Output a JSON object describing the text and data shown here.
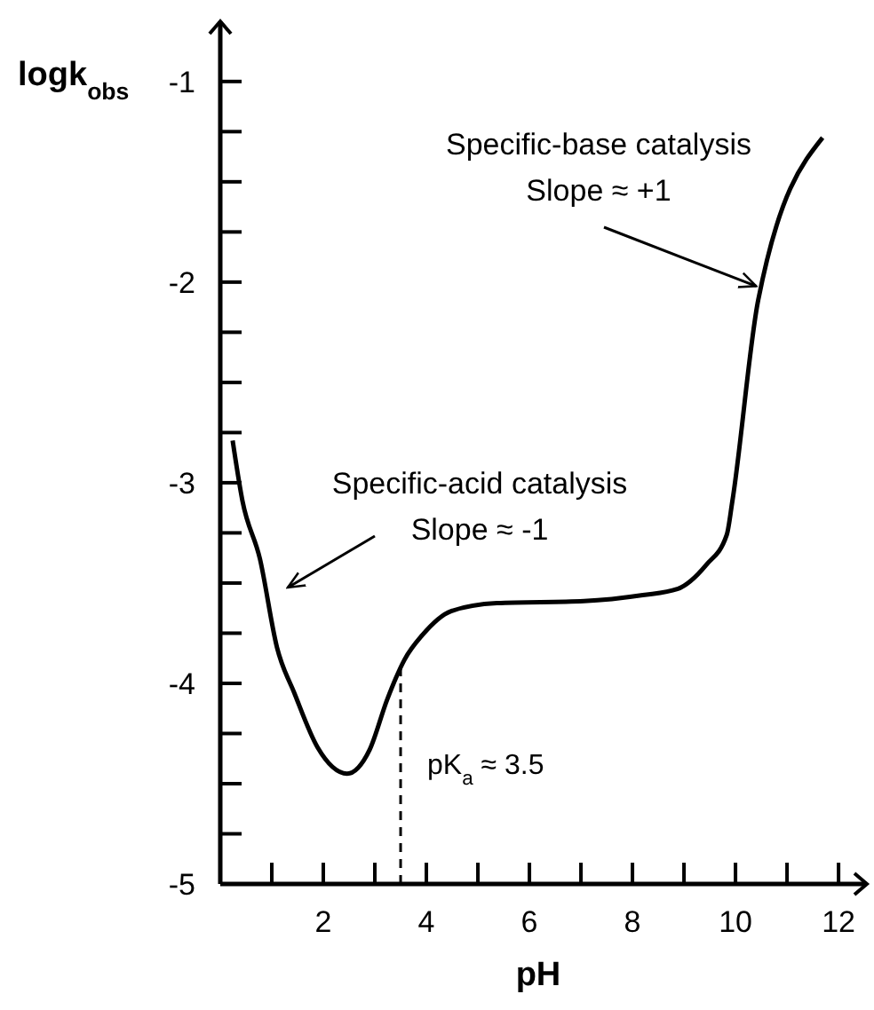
{
  "chart_data": {
    "type": "line",
    "xlabel": "pH",
    "ylabel": "logk$_{obs}$",
    "x": [
      0.24,
      0.43,
      0.77,
      1.1,
      1.44,
      1.89,
      2.46,
      2.9,
      3.24,
      3.58,
      3.92,
      4.48,
      5.37,
      7.06,
      8.2,
      8.87,
      9.43,
      9.83,
      9.94,
      10.44,
      11.69
    ],
    "series": [
      {
        "color": "#000000",
        "values": [
          -2.79,
          -3.09,
          -3.38,
          -3.82,
          -4.05,
          -4.32,
          -4.45,
          -4.33,
          -4.08,
          -3.88,
          -3.76,
          -3.64,
          -3.6,
          -3.59,
          -3.56,
          -3.53,
          -3.41,
          -3.26,
          -3.09,
          -2.09,
          -1.28
        ]
      }
    ],
    "xlim": [
      0,
      12.55
    ],
    "ylim": [
      -5,
      -0.7
    ],
    "xticks": [
      {
        "value": 1,
        "label": null
      },
      2,
      {
        "value": 3,
        "label": null
      },
      4,
      {
        "value": 5,
        "label": null
      },
      6,
      {
        "value": 7,
        "label": null
      },
      8,
      {
        "value": 9,
        "label": null
      },
      10,
      {
        "value": 11,
        "label": null
      },
      12
    ],
    "yticks": [
      -5,
      {
        "value": -4.75,
        "label": null
      },
      {
        "value": -4.5,
        "label": null
      },
      {
        "value": -4.25,
        "label": null
      },
      -4,
      {
        "value": -3.75,
        "label": null
      },
      {
        "value": -3.5,
        "label": null
      },
      {
        "value": -3.25,
        "label": null
      },
      -3,
      {
        "value": -2.75,
        "label": null
      },
      {
        "value": -2.5,
        "label": null
      },
      {
        "value": -2.25,
        "label": null
      },
      -2,
      {
        "value": -1.75,
        "label": null
      },
      {
        "value": -1.5,
        "label": null
      },
      {
        "value": -1.25,
        "label": null
      },
      -1
    ],
    "ref_lines": [
      {
        "axis": "x",
        "value": 3.5,
        "label": "pK$_{a}$ ≈ 3.5",
        "line_style": "dashed"
      }
    ],
    "annotations": [
      {
        "text": "Specific-base catalysis\nSlope ≈ +1",
        "x": 10.4,
        "y": -2.02
      },
      "Specific-acid catalysis\nSlope ≈ -1"
    ],
    "grid": false,
    "marker": "none",
    "line_style": "solid"
  }
}
